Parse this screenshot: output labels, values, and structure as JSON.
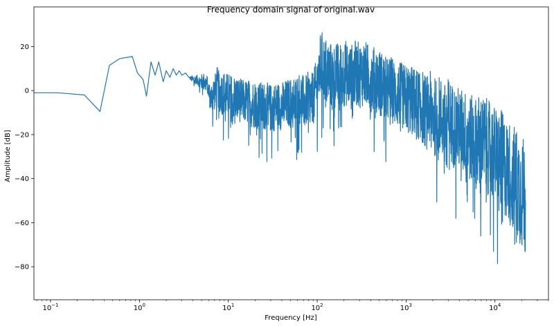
{
  "chart_data": {
    "type": "line",
    "title": "Frequency domain signal of original.wav",
    "xlabel": "Frequency [Hz]",
    "ylabel": "Amplitude [dB]",
    "xscale": "log",
    "xlim": [
      0.065,
      40000
    ],
    "ylim": [
      -95,
      38
    ],
    "grid": false,
    "x_ticks": [
      {
        "value": 0.1,
        "base": "10",
        "exp": "−1"
      },
      {
        "value": 1,
        "base": "10",
        "exp": "0"
      },
      {
        "value": 10,
        "base": "10",
        "exp": "1"
      },
      {
        "value": 100,
        "base": "10",
        "exp": "2"
      },
      {
        "value": 1000,
        "base": "10",
        "exp": "3"
      },
      {
        "value": 10000,
        "base": "10",
        "exp": "4"
      }
    ],
    "y_ticks": [
      {
        "value": 20,
        "label": "20"
      },
      {
        "value": 0,
        "label": "0"
      },
      {
        "value": -20,
        "label": "−20"
      },
      {
        "value": -40,
        "label": "−40"
      },
      {
        "value": -60,
        "label": "−60"
      },
      {
        "value": -80,
        "label": "−80"
      }
    ],
    "series": [
      {
        "color": "#1f77b4",
        "x": [
          0.065,
          0.12,
          0.24,
          0.36,
          0.46,
          0.6,
          0.83,
          0.95,
          1.1,
          1.2,
          1.35,
          1.5,
          1.65,
          1.85,
          2.0,
          2.2,
          2.4,
          2.6,
          2.8,
          3.0,
          3.3,
          3.6,
          4.0,
          4.4,
          4.8,
          5.3,
          5.8,
          6.3,
          6.8,
          7.0,
          7.5,
          8.0,
          8.5,
          9.0,
          9.5,
          10.0,
          11.0,
          12.0,
          13.0,
          14.5,
          16.0,
          18.0,
          20.0,
          23.0,
          26.0,
          30.0,
          35.0,
          40.0,
          45.0,
          52.0,
          58.0,
          65.0,
          72.0,
          80.0,
          88.0,
          95.0,
          103.0,
          110.0,
          120.0,
          135.0,
          150.0,
          170.0,
          190.0,
          210.0,
          240.0,
          270.0,
          300.0,
          340.0,
          380.0,
          420.0,
          470.0,
          530.0,
          600.0,
          680.0,
          760.0,
          850.0,
          950.0,
          1050.0,
          1200.0,
          1350.0,
          1500.0,
          1700.0,
          1900.0,
          2100.0,
          2400.0,
          2700.0,
          3000.0,
          3400.0,
          3800.0,
          4200.0,
          4800.0,
          5400.0,
          6000.0,
          6800.0,
          7600.0,
          8500.0,
          9500.0,
          10500.0,
          12000.0,
          13500.0,
          15000.0,
          17000.0,
          19000.0,
          21000.0,
          22050.0
        ],
        "mean": [
          -1,
          -1,
          -2,
          -9.5,
          11.5,
          14.5,
          15.5,
          8,
          5,
          -2.5,
          13,
          7,
          13,
          4,
          9,
          6,
          10,
          7,
          9,
          7,
          8,
          6,
          5,
          5,
          4,
          4,
          3,
          -4,
          -1,
          -1,
          2,
          -1,
          -1,
          -1,
          -2,
          -2,
          -3,
          -3,
          -4,
          -5,
          -5,
          -6,
          -6,
          -7,
          -7,
          -8,
          -7,
          -7,
          -6,
          -5,
          -5,
          -3,
          -6,
          -3,
          -4,
          -1,
          6,
          12,
          10,
          8,
          6,
          7,
          7,
          8,
          6,
          8,
          7,
          8,
          6,
          5,
          5,
          3,
          0,
          1,
          -2,
          -2,
          -3,
          -4,
          -5,
          -6,
          -7,
          -10,
          -8,
          -12,
          -11,
          -15,
          -12,
          -16,
          -17,
          -18,
          -20,
          -22,
          -24,
          -22,
          -24,
          -26,
          -28,
          -30,
          -32,
          -36,
          -38,
          -41,
          -44,
          -48,
          -50
        ],
        "spread": [
          0,
          0,
          0,
          0,
          0,
          0,
          0,
          0,
          0,
          0,
          0,
          0,
          0,
          0,
          0,
          0,
          0,
          0,
          0,
          0,
          0,
          0,
          2,
          2,
          3,
          4,
          4,
          6,
          8,
          8,
          9,
          9,
          10,
          10,
          10,
          10,
          10,
          10,
          10,
          10,
          10,
          11,
          11,
          11,
          11,
          11,
          11,
          11,
          11,
          11,
          12,
          12,
          12,
          12,
          12,
          13,
          14,
          16,
          15,
          15,
          15,
          15,
          15,
          15,
          15,
          15,
          15,
          15,
          15,
          15,
          15,
          15,
          15,
          15,
          15,
          15,
          15,
          16,
          16,
          16,
          17,
          17,
          17,
          18,
          18,
          18,
          18,
          19,
          19,
          19,
          20,
          20,
          21,
          21,
          21,
          22,
          22,
          22,
          23,
          23,
          24,
          25,
          26,
          27,
          27
        ]
      }
    ]
  }
}
